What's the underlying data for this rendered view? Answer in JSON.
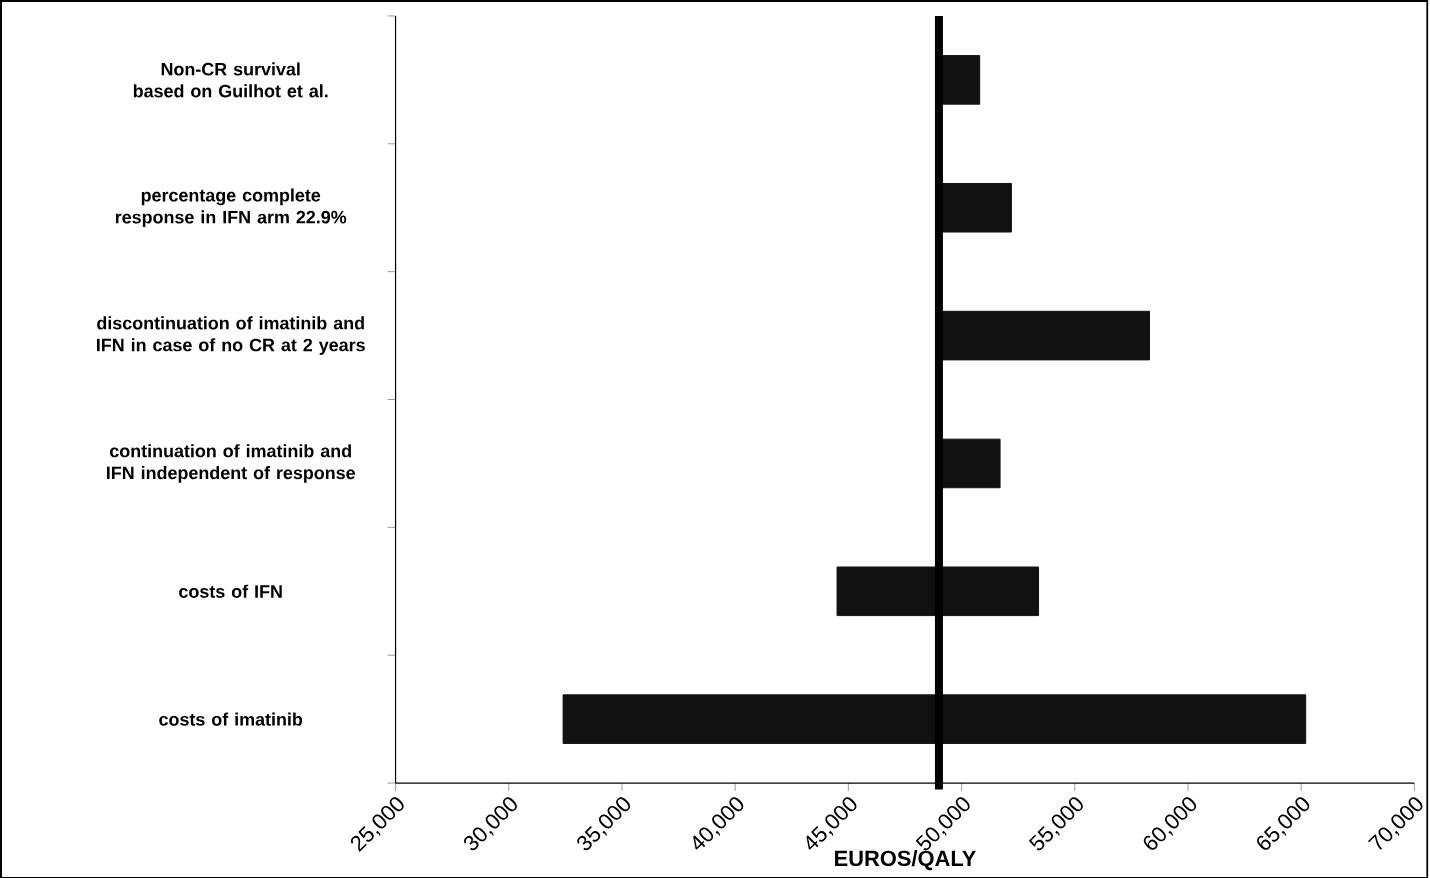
{
  "chart_data": {
    "type": "bar",
    "orientation": "horizontal",
    "xlabel": "EUROS/QALY",
    "categories": [
      "Non-CR survival based on Guilhot et al.",
      "percentage complete response in IFN arm 22.9%",
      "discontinuation of imatinib and IFN in case of no CR at 2 years",
      "continuation of imatinib and IFN independent of response",
      "costs of IFN",
      "costs of imatinib"
    ],
    "base": [
      49000,
      49000,
      49000,
      49000,
      44500,
      32400
    ],
    "values": [
      1800,
      3200,
      9300,
      2700,
      8900,
      32800
    ],
    "color": "#111111",
    "xlim": [
      25000,
      70000
    ],
    "xticks": [
      {
        "value": 25000,
        "label": "25,000"
      },
      {
        "value": 30000,
        "label": "30,000"
      },
      {
        "value": 35000,
        "label": "35,000"
      },
      {
        "value": 40000,
        "label": "40,000"
      },
      {
        "value": 45000,
        "label": "45,000"
      },
      {
        "value": 50000,
        "label": "50,000"
      },
      {
        "value": 55000,
        "label": "55,000"
      },
      {
        "value": 60000,
        "label": "60,000"
      },
      {
        "value": 65000,
        "label": "65,000"
      },
      {
        "value": 70000,
        "label": "70,000"
      }
    ],
    "ref_lines": [
      {
        "axis": "x",
        "value": 49000,
        "color": "#000000"
      }
    ]
  }
}
